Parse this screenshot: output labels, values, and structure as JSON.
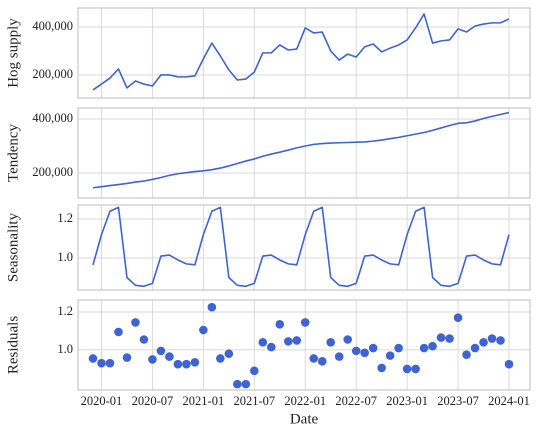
{
  "chart_data": [
    {
      "type": "line",
      "ylabel": "Hog supply",
      "color": "#3f63d2",
      "grid": true,
      "x": [
        "2019-12",
        "2020-01",
        "2020-02",
        "2020-03",
        "2020-04",
        "2020-05",
        "2020-06",
        "2020-07",
        "2020-08",
        "2020-09",
        "2020-10",
        "2020-11",
        "2020-12",
        "2021-01",
        "2021-02",
        "2021-03",
        "2021-04",
        "2021-05",
        "2021-06",
        "2021-07",
        "2021-08",
        "2021-09",
        "2021-10",
        "2021-11",
        "2021-12",
        "2022-01",
        "2022-02",
        "2022-03",
        "2022-04",
        "2022-05",
        "2022-06",
        "2022-07",
        "2022-08",
        "2022-09",
        "2022-10",
        "2022-11",
        "2022-12",
        "2023-01",
        "2023-02",
        "2023-03",
        "2023-04",
        "2023-05",
        "2023-06",
        "2023-07",
        "2023-08",
        "2023-09",
        "2023-10",
        "2023-11",
        "2023-12",
        "2024-01"
      ],
      "values": [
        137500,
        162000,
        187000,
        225000,
        146000,
        175000,
        162000,
        154000,
        200000,
        200000,
        192000,
        192000,
        196000,
        267000,
        333000,
        279000,
        221000,
        179000,
        183000,
        212000,
        292000,
        292000,
        325000,
        304000,
        308000,
        396000,
        375000,
        379000,
        300000,
        262000,
        287000,
        275000,
        317000,
        329000,
        296000,
        312000,
        325000,
        346000,
        396000,
        454000,
        333000,
        342000,
        346000,
        392000,
        379000,
        404000,
        412000,
        417000,
        417000,
        433000
      ],
      "ylim": [
        104000,
        479000
      ],
      "yticks": [
        {
          "value": 200000,
          "label": "200,000"
        },
        {
          "value": 400000,
          "label": "400,000"
        }
      ]
    },
    {
      "type": "line",
      "ylabel": "Tendency",
      "color": "#3f63d2",
      "grid": true,
      "x": [
        "2019-12",
        "2020-01",
        "2020-02",
        "2020-03",
        "2020-04",
        "2020-05",
        "2020-06",
        "2020-07",
        "2020-08",
        "2020-09",
        "2020-10",
        "2020-11",
        "2020-12",
        "2021-01",
        "2021-02",
        "2021-03",
        "2021-04",
        "2021-05",
        "2021-06",
        "2021-07",
        "2021-08",
        "2021-09",
        "2021-10",
        "2021-11",
        "2021-12",
        "2022-01",
        "2022-02",
        "2022-03",
        "2022-04",
        "2022-05",
        "2022-06",
        "2022-07",
        "2022-08",
        "2022-09",
        "2022-10",
        "2022-11",
        "2022-12",
        "2023-01",
        "2023-02",
        "2023-03",
        "2023-04",
        "2023-05",
        "2023-06",
        "2023-07",
        "2023-08",
        "2023-09",
        "2023-10",
        "2023-11",
        "2023-12",
        "2024-01"
      ],
      "values": [
        145000,
        149000,
        153000,
        157000,
        161000,
        166000,
        170000,
        176000,
        183000,
        191000,
        197000,
        201000,
        205000,
        208000,
        212000,
        218000,
        226000,
        235000,
        244000,
        252000,
        262000,
        270000,
        277000,
        285000,
        293000,
        300000,
        306000,
        309000,
        311000,
        312000,
        313000,
        314000,
        315000,
        318000,
        322000,
        327000,
        332000,
        338000,
        344000,
        350000,
        358000,
        367000,
        376000,
        384000,
        386000,
        393000,
        402000,
        410000,
        417000,
        424000
      ],
      "ylim": [
        107000,
        441000
      ],
      "yticks": [
        {
          "value": 200000,
          "label": "200,000"
        },
        {
          "value": 400000,
          "label": "400,000"
        }
      ]
    },
    {
      "type": "line",
      "ylabel": "Seasonality",
      "color": "#3f63d2",
      "grid": true,
      "x": [
        "2019-12",
        "2020-01",
        "2020-02",
        "2020-03",
        "2020-04",
        "2020-05",
        "2020-06",
        "2020-07",
        "2020-08",
        "2020-09",
        "2020-10",
        "2020-11",
        "2020-12",
        "2021-01",
        "2021-02",
        "2021-03",
        "2021-04",
        "2021-05",
        "2021-06",
        "2021-07",
        "2021-08",
        "2021-09",
        "2021-10",
        "2021-11",
        "2021-12",
        "2022-01",
        "2022-02",
        "2022-03",
        "2022-04",
        "2022-05",
        "2022-06",
        "2022-07",
        "2022-08",
        "2022-09",
        "2022-10",
        "2022-11",
        "2022-12",
        "2023-01",
        "2023-02",
        "2023-03",
        "2023-04",
        "2023-05",
        "2023-06",
        "2023-07",
        "2023-08",
        "2023-09",
        "2023-10",
        "2023-11",
        "2023-12",
        "2024-01"
      ],
      "values": [
        0.965,
        1.12,
        1.24,
        1.26,
        0.9,
        0.86,
        0.855,
        0.87,
        1.01,
        1.015,
        0.99,
        0.97,
        0.965,
        1.12,
        1.24,
        1.26,
        0.9,
        0.86,
        0.855,
        0.87,
        1.01,
        1.015,
        0.99,
        0.97,
        0.965,
        1.12,
        1.24,
        1.26,
        0.9,
        0.86,
        0.855,
        0.87,
        1.01,
        1.015,
        0.99,
        0.97,
        0.965,
        1.12,
        1.24,
        1.26,
        0.9,
        0.86,
        0.855,
        0.87,
        1.01,
        1.015,
        0.99,
        0.97,
        0.965,
        1.12
      ],
      "ylim": [
        0.836,
        1.272
      ],
      "yticks": [
        {
          "value": 1.0,
          "label": "1.0"
        },
        1.2
      ]
    },
    {
      "type": "scatter",
      "ylabel": "Residuals",
      "xlabel": "Date",
      "color": "#3f63d2",
      "grid": true,
      "x": [
        "2019-12",
        "2020-01",
        "2020-02",
        "2020-03",
        "2020-04",
        "2020-05",
        "2020-06",
        "2020-07",
        "2020-08",
        "2020-09",
        "2020-10",
        "2020-11",
        "2020-12",
        "2021-01",
        "2021-02",
        "2021-03",
        "2021-04",
        "2021-05",
        "2021-06",
        "2021-07",
        "2021-08",
        "2021-09",
        "2021-10",
        "2021-11",
        "2021-12",
        "2022-01",
        "2022-02",
        "2022-03",
        "2022-04",
        "2022-05",
        "2022-06",
        "2022-07",
        "2022-08",
        "2022-09",
        "2022-10",
        "2022-11",
        "2022-12",
        "2023-01",
        "2023-02",
        "2023-03",
        "2023-04",
        "2023-05",
        "2023-06",
        "2023-07",
        "2023-08",
        "2023-09",
        "2023-10",
        "2023-11",
        "2023-12",
        "2024-01"
      ],
      "values": [
        0.955,
        0.93,
        0.93,
        1.095,
        0.96,
        1.145,
        1.055,
        0.95,
        0.995,
        0.965,
        0.925,
        0.925,
        0.935,
        1.105,
        1.225,
        0.955,
        0.98,
        0.82,
        0.82,
        0.89,
        1.04,
        1.015,
        1.135,
        1.045,
        1.05,
        1.145,
        0.955,
        0.94,
        1.04,
        0.965,
        1.055,
        0.995,
        0.985,
        1.01,
        0.905,
        0.97,
        1.01,
        0.9,
        0.9,
        1.01,
        1.02,
        1.065,
        1.06,
        1.17,
        0.975,
        1.01,
        1.04,
        1.06,
        1.05,
        0.925
      ],
      "ylim": [
        0.789,
        1.263
      ],
      "yticks": [
        {
          "value": 1.0,
          "label": "1.0"
        },
        1.2
      ],
      "xticks": [
        "2020-01",
        "2020-07",
        "2021-01",
        "2021-07",
        "2022-01",
        "2022-07",
        "2023-01",
        "2023-07",
        "2024-01"
      ]
    }
  ]
}
